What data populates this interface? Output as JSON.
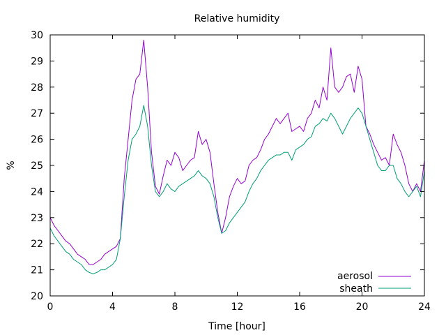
{
  "chart_data": {
    "type": "line",
    "title": "Relative humidity",
    "xlabel": "Time [hour]",
    "ylabel": "%",
    "xlim": [
      0,
      24
    ],
    "ylim": [
      20,
      30
    ],
    "xticks": [
      0,
      4,
      8,
      12,
      16,
      20,
      24
    ],
    "yticks": [
      20,
      21,
      22,
      23,
      24,
      25,
      26,
      27,
      28,
      29,
      30
    ],
    "legend_position": "bottom-right",
    "grid": false,
    "series": [
      {
        "name": "aerosol",
        "color": "#9400d3",
        "x": [
          0,
          0.25,
          0.5,
          0.75,
          1,
          1.25,
          1.5,
          1.75,
          2,
          2.25,
          2.5,
          2.75,
          3,
          3.25,
          3.5,
          3.75,
          4,
          4.25,
          4.5,
          4.75,
          5,
          5.25,
          5.5,
          5.75,
          6,
          6.25,
          6.5,
          6.75,
          7,
          7.25,
          7.5,
          7.75,
          8,
          8.25,
          8.5,
          8.75,
          9,
          9.25,
          9.5,
          9.75,
          10,
          10.25,
          10.5,
          10.75,
          11,
          11.25,
          11.5,
          11.75,
          12,
          12.25,
          12.5,
          12.75,
          13,
          13.25,
          13.5,
          13.75,
          14,
          14.25,
          14.5,
          14.75,
          15,
          15.25,
          15.5,
          15.75,
          16,
          16.25,
          16.5,
          16.75,
          17,
          17.25,
          17.5,
          17.75,
          18,
          18.25,
          18.5,
          18.75,
          19,
          19.25,
          19.5,
          19.75,
          20,
          20.25,
          20.5,
          20.75,
          21,
          21.25,
          21.5,
          21.75,
          22,
          22.25,
          22.5,
          22.75,
          23,
          23.25,
          23.5,
          23.75,
          24
        ],
        "values": [
          23.0,
          22.7,
          22.5,
          22.3,
          22.1,
          22.0,
          21.8,
          21.6,
          21.5,
          21.4,
          21.2,
          21.2,
          21.3,
          21.4,
          21.6,
          21.7,
          21.8,
          21.9,
          22.2,
          24.5,
          26.0,
          27.5,
          28.3,
          28.5,
          29.8,
          28.0,
          25.5,
          24.2,
          23.9,
          24.6,
          25.2,
          25.0,
          25.5,
          25.3,
          24.8,
          25.0,
          25.2,
          25.3,
          26.3,
          25.8,
          26.0,
          25.5,
          24.3,
          23.2,
          22.4,
          23.0,
          23.8,
          24.2,
          24.5,
          24.3,
          24.4,
          25.0,
          25.2,
          25.3,
          25.6,
          26.0,
          26.2,
          26.5,
          26.8,
          26.6,
          26.8,
          27.0,
          26.3,
          26.4,
          26.5,
          26.3,
          26.8,
          27.0,
          27.5,
          27.2,
          28.0,
          27.5,
          29.5,
          28.0,
          27.8,
          28.0,
          28.4,
          28.5,
          27.8,
          28.8,
          28.3,
          26.5,
          26.2,
          25.8,
          25.5,
          25.2,
          25.3,
          25.0,
          26.2,
          25.8,
          25.5,
          25.0,
          24.3,
          24.0,
          24.3,
          24.0,
          25.2
        ],
        "line_width": 1
      },
      {
        "name": "sheath",
        "color": "#009e73",
        "x": [
          0,
          0.25,
          0.5,
          0.75,
          1,
          1.25,
          1.5,
          1.75,
          2,
          2.25,
          2.5,
          2.75,
          3,
          3.25,
          3.5,
          3.75,
          4,
          4.25,
          4.5,
          4.75,
          5,
          5.25,
          5.5,
          5.75,
          6,
          6.25,
          6.5,
          6.75,
          7,
          7.25,
          7.5,
          7.75,
          8,
          8.25,
          8.5,
          8.75,
          9,
          9.25,
          9.5,
          9.75,
          10,
          10.25,
          10.5,
          10.75,
          11,
          11.25,
          11.5,
          11.75,
          12,
          12.25,
          12.5,
          12.75,
          13,
          13.25,
          13.5,
          13.75,
          14,
          14.25,
          14.5,
          14.75,
          15,
          15.25,
          15.5,
          15.75,
          16,
          16.25,
          16.5,
          16.75,
          17,
          17.25,
          17.5,
          17.75,
          18,
          18.25,
          18.5,
          18.75,
          19,
          19.25,
          19.5,
          19.75,
          20,
          20.25,
          20.5,
          20.75,
          21,
          21.25,
          21.5,
          21.75,
          22,
          22.25,
          22.5,
          22.75,
          23,
          23.25,
          23.5,
          23.75,
          24
        ],
        "values": [
          22.6,
          22.3,
          22.1,
          21.9,
          21.7,
          21.6,
          21.4,
          21.3,
          21.2,
          21.0,
          20.9,
          20.85,
          20.9,
          21.0,
          21.0,
          21.1,
          21.2,
          21.4,
          22.2,
          23.8,
          25.2,
          26.0,
          26.2,
          26.5,
          27.3,
          26.5,
          25.0,
          24.0,
          23.8,
          24.0,
          24.3,
          24.1,
          24.0,
          24.2,
          24.3,
          24.4,
          24.5,
          24.6,
          24.8,
          24.6,
          24.5,
          24.3,
          23.8,
          23.0,
          22.4,
          22.5,
          22.8,
          23.0,
          23.2,
          23.4,
          23.6,
          24.0,
          24.3,
          24.5,
          24.8,
          25.0,
          25.2,
          25.3,
          25.4,
          25.4,
          25.5,
          25.5,
          25.2,
          25.6,
          25.7,
          25.8,
          26.0,
          26.1,
          26.5,
          26.6,
          26.8,
          26.7,
          27.0,
          26.8,
          26.5,
          26.2,
          26.5,
          26.8,
          27.0,
          27.2,
          27.0,
          26.5,
          26.0,
          25.5,
          25.0,
          24.8,
          24.8,
          25.0,
          25.0,
          24.5,
          24.3,
          24.0,
          23.8,
          24.0,
          24.2,
          23.8,
          24.8
        ],
        "line_width": 1
      }
    ]
  }
}
